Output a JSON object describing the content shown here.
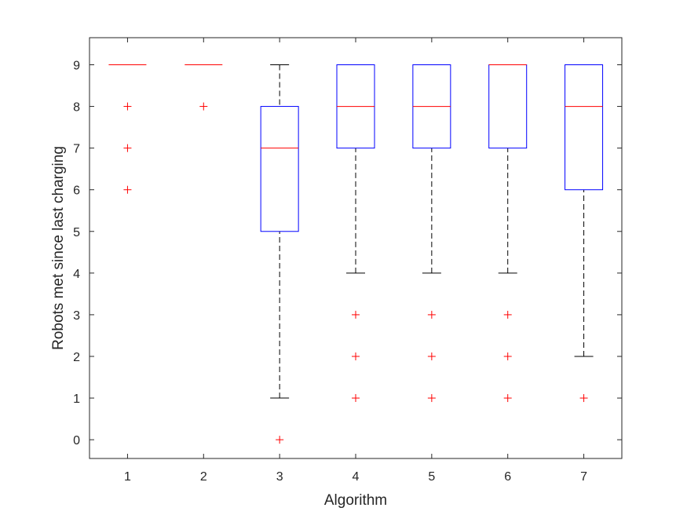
{
  "chart_data": {
    "type": "boxplot",
    "xlabel": "Algorithm",
    "ylabel": "Robots met since last charging",
    "categories": [
      "1",
      "2",
      "3",
      "4",
      "5",
      "6",
      "7"
    ],
    "xlim": [
      0.5,
      7.5
    ],
    "ylim": [
      -0.45,
      9.65
    ],
    "yticks": [
      0,
      1,
      2,
      3,
      4,
      5,
      6,
      7,
      8,
      9
    ],
    "grid": false,
    "boxes": [
      {
        "category": "1",
        "q1": 9,
        "median": 9,
        "q3": 9,
        "whisker_low": 9,
        "whisker_high": 9,
        "outliers": [
          8,
          7,
          6
        ]
      },
      {
        "category": "2",
        "q1": 9,
        "median": 9,
        "q3": 9,
        "whisker_low": 9,
        "whisker_high": 9,
        "outliers": [
          8
        ]
      },
      {
        "category": "3",
        "q1": 5,
        "median": 7,
        "q3": 8,
        "whisker_low": 1,
        "whisker_high": 9,
        "outliers": [
          0
        ]
      },
      {
        "category": "4",
        "q1": 7,
        "median": 8,
        "q3": 9,
        "whisker_low": 4,
        "whisker_high": 9,
        "outliers": [
          3,
          2,
          1
        ]
      },
      {
        "category": "5",
        "q1": 7,
        "median": 8,
        "q3": 9,
        "whisker_low": 4,
        "whisker_high": 9,
        "outliers": [
          3,
          2,
          1
        ]
      },
      {
        "category": "6",
        "q1": 7,
        "median": 9,
        "q3": 9,
        "whisker_low": 4,
        "whisker_high": 9,
        "outliers": [
          3,
          2,
          1
        ]
      },
      {
        "category": "7",
        "q1": 6,
        "median": 8,
        "q3": 9,
        "whisker_low": 2,
        "whisker_high": 9,
        "outliers": [
          1
        ]
      }
    ],
    "colors": {
      "box": "#0000ff",
      "median": "#ff0000",
      "whisker": "#000000",
      "outlier": "#ff0000",
      "axis": "#262626"
    }
  }
}
